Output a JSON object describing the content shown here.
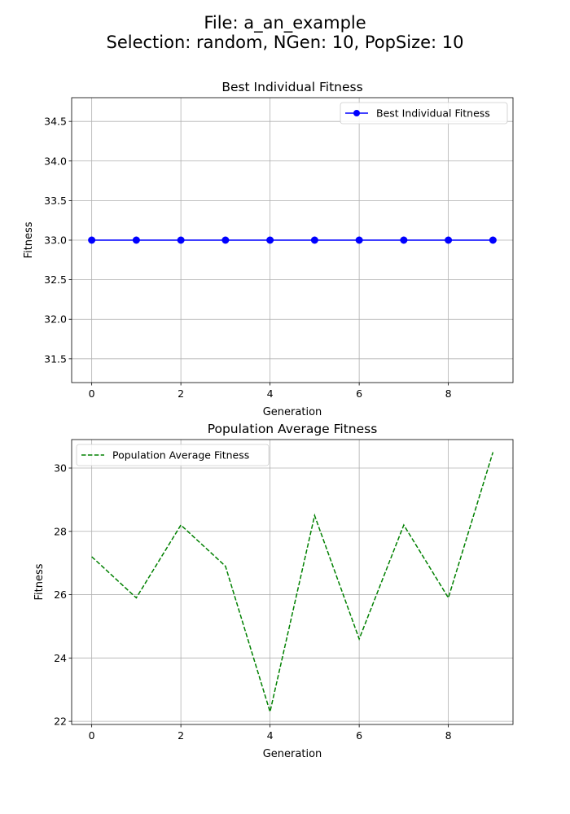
{
  "figure": {
    "suptitle_line1": "File: a_an_example",
    "suptitle_line2": "Selection: random, NGen: 10, PopSize: 10"
  },
  "chart_data": [
    {
      "type": "line",
      "title": "Best Individual Fitness",
      "xlabel": "Generation",
      "ylabel": "Fitness",
      "xlim": [
        -0.45,
        9.45
      ],
      "ylim": [
        31.2,
        34.8
      ],
      "xticks": [
        0,
        2,
        4,
        6,
        8
      ],
      "yticks": [
        31.5,
        32.0,
        32.5,
        33.0,
        33.5,
        34.0,
        34.5
      ],
      "ytick_labels": [
        "31.5",
        "32.0",
        "32.5",
        "33.0",
        "33.5",
        "34.0",
        "34.5"
      ],
      "grid": true,
      "legend_position": "upper right",
      "series": [
        {
          "name": "Best Individual Fitness",
          "color": "#0000ff",
          "linestyle": "solid",
          "marker": "circle",
          "x": [
            0,
            1,
            2,
            3,
            4,
            5,
            6,
            7,
            8,
            9
          ],
          "y": [
            33,
            33,
            33,
            33,
            33,
            33,
            33,
            33,
            33,
            33
          ]
        }
      ]
    },
    {
      "type": "line",
      "title": "Population Average Fitness",
      "xlabel": "Generation",
      "ylabel": "Fitness",
      "xlim": [
        -0.45,
        9.45
      ],
      "ylim": [
        21.9,
        30.9
      ],
      "xticks": [
        0,
        2,
        4,
        6,
        8
      ],
      "yticks": [
        22,
        24,
        26,
        28,
        30
      ],
      "ytick_labels": [
        "22",
        "24",
        "26",
        "28",
        "30"
      ],
      "grid": true,
      "legend_position": "upper left",
      "series": [
        {
          "name": "Population Average Fitness",
          "color": "#008000",
          "linestyle": "dashed",
          "marker": "none",
          "x": [
            0,
            1,
            2,
            3,
            4,
            5,
            6,
            7,
            8,
            9
          ],
          "y": [
            27.2,
            25.9,
            28.2,
            26.9,
            22.3,
            28.5,
            24.6,
            28.2,
            25.9,
            30.5
          ]
        }
      ]
    }
  ]
}
